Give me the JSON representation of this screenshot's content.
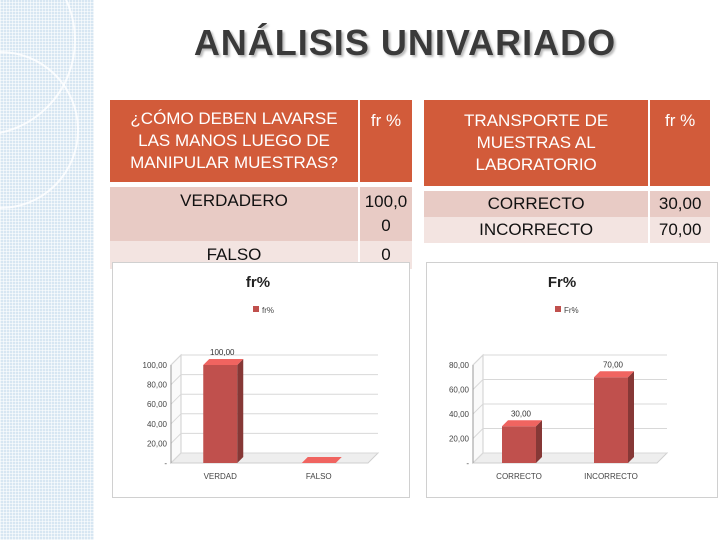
{
  "title": "ANÁLISIS UNIVARIADO",
  "table_left": {
    "header_question": "¿CÓMO DEBEN LAVARSE LAS MANOS LUEGO DE MANIPULAR MUESTRAS?",
    "header_fr": "fr %",
    "rows": [
      {
        "label": "VERDADERO",
        "value_line1": "100,0",
        "value_line2": "0"
      },
      {
        "label": "FALSO",
        "value_line1": "0"
      }
    ]
  },
  "table_right": {
    "header_question": "TRANSPORTE DE MUESTRAS AL LABORATORIO",
    "header_fr": "fr %",
    "rows": [
      {
        "label": "CORRECTO",
        "value": "30,00"
      },
      {
        "label": "INCORRECTO",
        "value": "70,00"
      }
    ]
  },
  "chart_data": [
    {
      "type": "bar",
      "title": "fr%",
      "legend": "fr%",
      "categories": [
        "VERDAD",
        "FALSO"
      ],
      "values": [
        100,
        0
      ],
      "data_labels": [
        "100,00",
        ""
      ],
      "ytick_labels": [
        "-",
        "20,00",
        "40,00",
        "60,00",
        "80,00",
        "100,00"
      ],
      "ylim": [
        0,
        100
      ],
      "color": "#c0504d"
    },
    {
      "type": "bar",
      "title": "Fr%",
      "legend": "Fr%",
      "categories": [
        "CORRECTO",
        "INCORRECTO"
      ],
      "values": [
        30,
        70
      ],
      "data_labels": [
        "30,00",
        "70,00"
      ],
      "ytick_labels": [
        "-",
        "20,00",
        "40,00",
        "60,00",
        "80,00"
      ],
      "ylim": [
        0,
        80
      ],
      "color": "#c0504d"
    }
  ]
}
